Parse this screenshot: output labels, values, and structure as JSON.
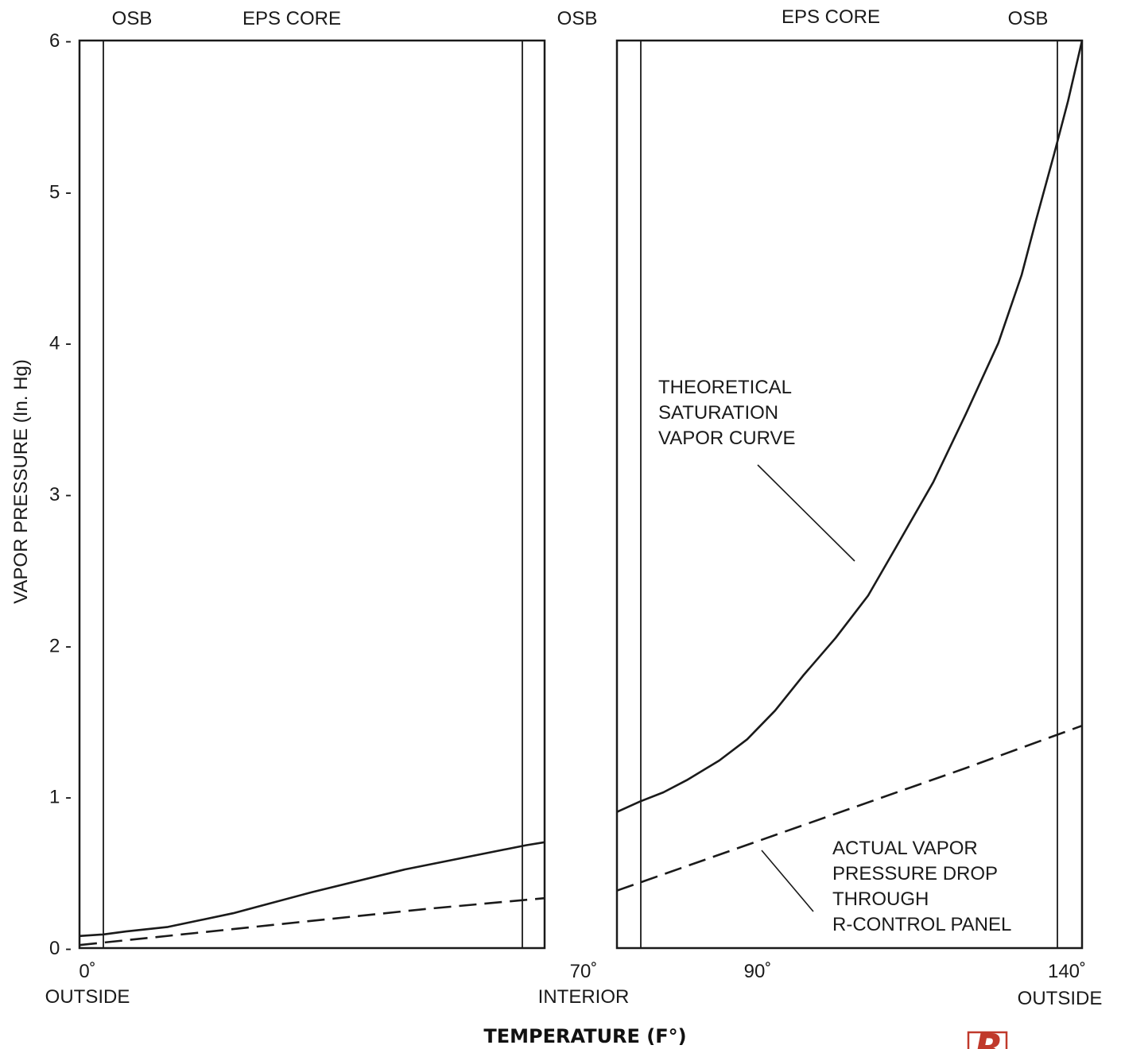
{
  "chart_data": {
    "type": "line",
    "ylabel": "VAPOR PRESSURE (In. Hg)",
    "xlabel": "TEMPERATURE (F°)",
    "ylim": [
      0,
      6
    ],
    "yticks": [
      "0 -",
      "1 -",
      "2 -",
      "3 -",
      "4 -",
      "5 -",
      "6 -"
    ],
    "grid": false,
    "panels": [
      {
        "layer_labels": [
          "OSB",
          "EPS CORE",
          "OSB"
        ],
        "x_tick_labels": [
          "0˚",
          "70˚"
        ],
        "x_end_labels": [
          "OUTSIDE",
          "INTERIOR"
        ],
        "series": [
          {
            "style": "solid",
            "points": [
              [
                0,
                0.08
              ],
              [
                0.05,
                0.09
              ],
              [
                0.1,
                0.11
              ],
              [
                0.19,
                0.14
              ],
              [
                0.33,
                0.23
              ],
              [
                0.5,
                0.37
              ],
              [
                0.7,
                0.52
              ],
              [
                0.96,
                0.68
              ],
              [
                1.0,
                0.7
              ]
            ]
          },
          {
            "style": "dashed",
            "points": [
              [
                0,
                0.02
              ],
              [
                0.25,
                0.1
              ],
              [
                0.5,
                0.18
              ],
              [
                0.75,
                0.26
              ],
              [
                1.0,
                0.33
              ]
            ]
          }
        ]
      },
      {
        "layer_labels": [
          "EPS CORE",
          "OSB"
        ],
        "x_tick_labels": [
          "90˚",
          "140˚"
        ],
        "x_end_labels": [
          "OUTSIDE"
        ],
        "annotations": [
          {
            "lines": [
              "THEORETICAL",
              "SATURATION",
              "VAPOR CURVE"
            ]
          },
          {
            "lines": [
              "ACTUAL VAPOR",
              "PRESSURE DROP",
              "THROUGH",
              "R-CONTROL PANEL"
            ]
          }
        ],
        "series": [
          {
            "style": "solid",
            "points": [
              [
                0,
                0.9
              ],
              [
                0.05,
                0.97
              ],
              [
                0.1,
                1.03
              ],
              [
                0.15,
                1.11
              ],
              [
                0.22,
                1.24
              ],
              [
                0.28,
                1.38
              ],
              [
                0.34,
                1.57
              ],
              [
                0.4,
                1.8
              ],
              [
                0.47,
                2.05
              ],
              [
                0.54,
                2.33
              ],
              [
                0.6,
                2.65
              ],
              [
                0.68,
                3.08
              ],
              [
                0.75,
                3.53
              ],
              [
                0.82,
                4.0
              ],
              [
                0.87,
                4.45
              ],
              [
                0.9,
                4.8
              ],
              [
                0.94,
                5.25
              ],
              [
                0.97,
                5.6
              ],
              [
                1.0,
                6.0
              ]
            ]
          },
          {
            "style": "dashed",
            "points": [
              [
                0,
                0.38
              ],
              [
                0.25,
                0.65
              ],
              [
                0.5,
                0.92
              ],
              [
                0.75,
                1.19
              ],
              [
                1.0,
                1.47
              ]
            ]
          }
        ]
      }
    ]
  },
  "logo": {
    "letter": "R",
    "color": "#c0392b"
  }
}
